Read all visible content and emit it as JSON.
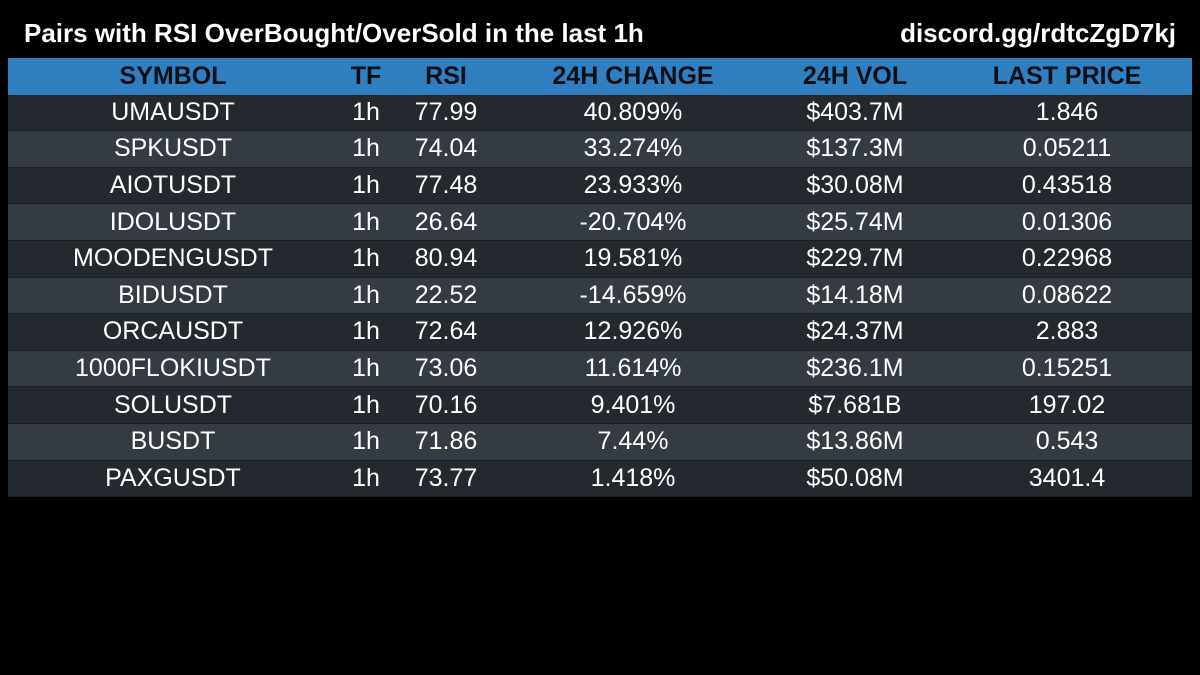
{
  "header": {
    "title": "Pairs with RSI OverBought/OverSold in the last 1h",
    "link": "discord.gg/rdtcZgD7kj"
  },
  "table": {
    "columns": [
      "SYMBOL",
      "TF",
      "RSI",
      "24H CHANGE",
      "24H VOL",
      "LAST PRICE"
    ],
    "rows": [
      [
        "UMAUSDT",
        "1h",
        "77.99",
        "40.809%",
        "$403.7M",
        "1.846"
      ],
      [
        "SPKUSDT",
        "1h",
        "74.04",
        "33.274%",
        "$137.3M",
        "0.05211"
      ],
      [
        "AIOTUSDT",
        "1h",
        "77.48",
        "23.933%",
        "$30.08M",
        "0.43518"
      ],
      [
        "IDOLUSDT",
        "1h",
        "26.64",
        "-20.704%",
        "$25.74M",
        "0.01306"
      ],
      [
        "MOODENGUSDT",
        "1h",
        "80.94",
        "19.581%",
        "$229.7M",
        "0.22968"
      ],
      [
        "BIDUSDT",
        "1h",
        "22.52",
        "-14.659%",
        "$14.18M",
        "0.08622"
      ],
      [
        "ORCAUSDT",
        "1h",
        "72.64",
        "12.926%",
        "$24.37M",
        "2.883"
      ],
      [
        "1000FLOKIUSDT",
        "1h",
        "73.06",
        "11.614%",
        "$236.1M",
        "0.15251"
      ],
      [
        "SOLUSDT",
        "1h",
        "70.16",
        "9.401%",
        "$7.681B",
        "197.02"
      ],
      [
        "BUSDT",
        "1h",
        "71.86",
        "7.44%",
        "$13.86M",
        "0.543"
      ],
      [
        "PAXGUSDT",
        "1h",
        "73.77",
        "1.418%",
        "$50.08M",
        "3401.4"
      ]
    ]
  },
  "colors": {
    "background": "#000000",
    "header_row": "#2f7fc1",
    "row_dark": "#23292f",
    "row_light": "#343b42",
    "text": "#ffffff"
  }
}
